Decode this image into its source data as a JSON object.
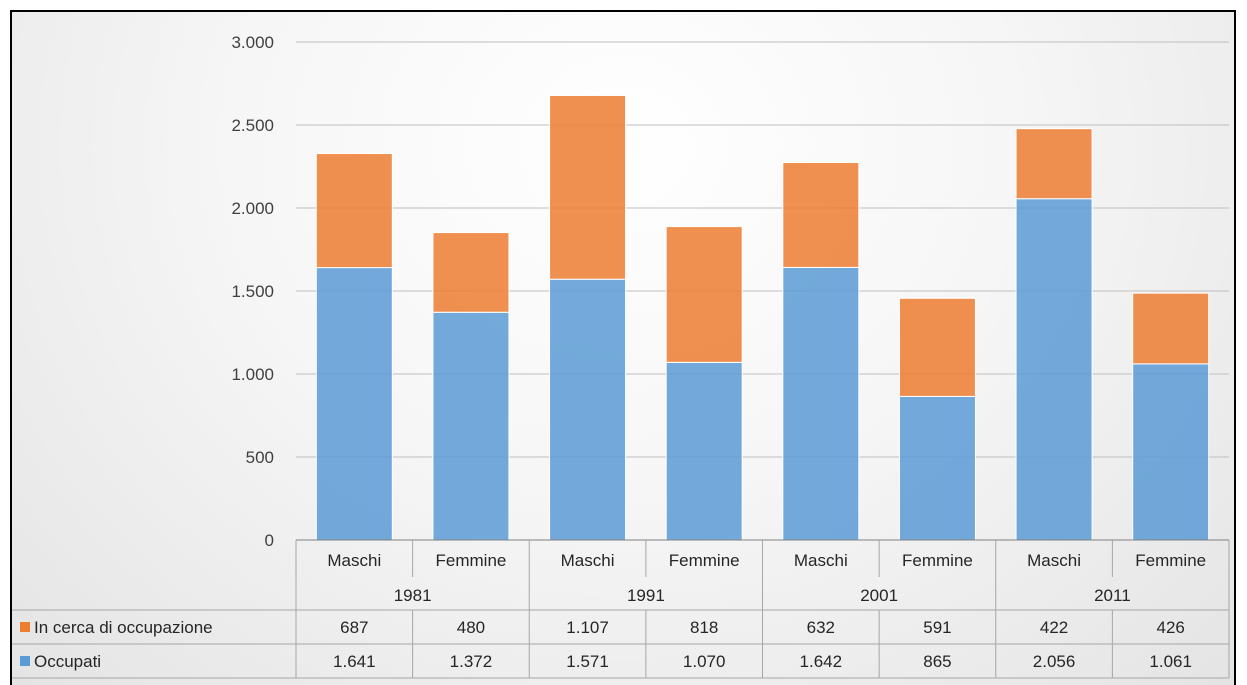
{
  "chart_data": {
    "type": "bar",
    "stacked": true,
    "groups": [
      "1981",
      "1991",
      "2001",
      "2011"
    ],
    "categories": [
      "Maschi",
      "Femmine",
      "Maschi",
      "Femmine",
      "Maschi",
      "Femmine",
      "Maschi",
      "Femmine"
    ],
    "series": [
      {
        "name": "Occupati",
        "color": "#5B9BD5",
        "values": [
          1641,
          1372,
          1571,
          1070,
          1642,
          865,
          2056,
          1061
        ],
        "labels": [
          "1.641",
          "1.372",
          "1.571",
          "1.070",
          "1.642",
          "865",
          "2.056",
          "1.061"
        ]
      },
      {
        "name": "In cerca di occupazione",
        "color": "#ED7D31",
        "values": [
          687,
          480,
          1107,
          818,
          632,
          591,
          422,
          426
        ],
        "labels": [
          "687",
          "480",
          "1.107",
          "818",
          "632",
          "591",
          "422",
          "426"
        ]
      }
    ],
    "yticks": [
      0,
      500,
      1000,
      1500,
      2000,
      2500,
      3000
    ],
    "ytick_labels": [
      "0",
      "500",
      "1.000",
      "1.500",
      "2.000",
      "2.500",
      "3.000"
    ],
    "ylim": [
      0,
      3000
    ],
    "grid": true,
    "legend": "data-table"
  }
}
